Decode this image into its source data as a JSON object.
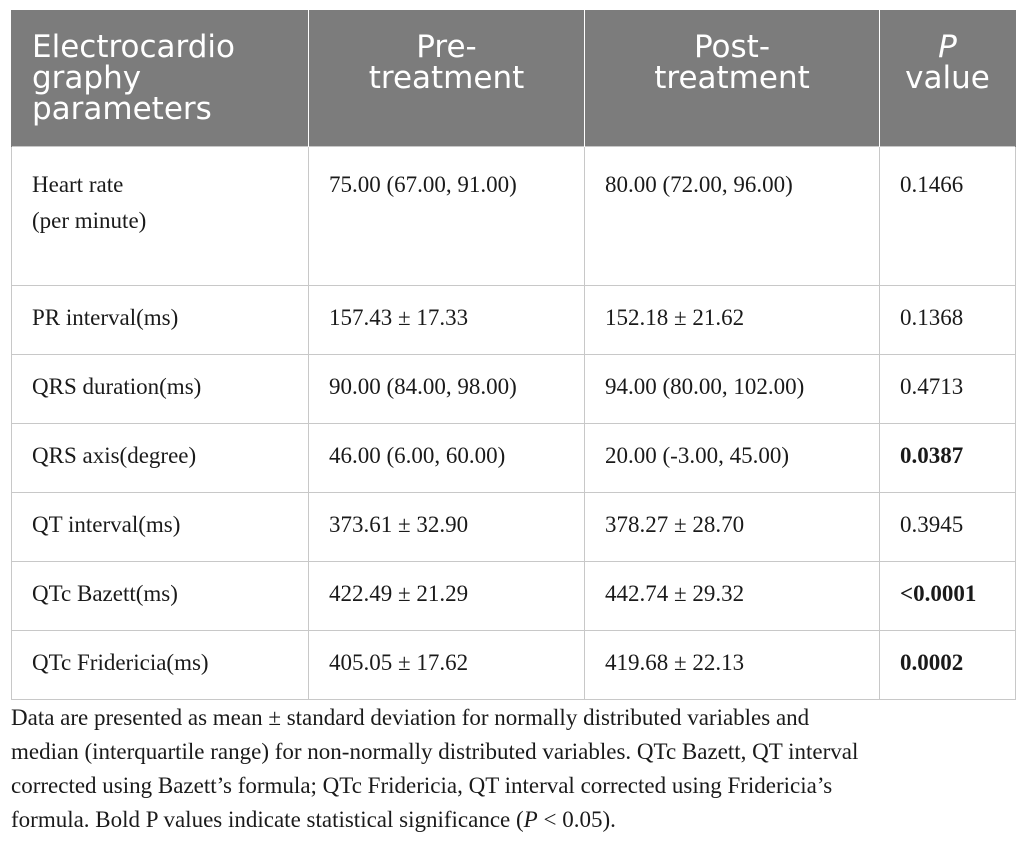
{
  "table": {
    "headers": {
      "parameters": [
        "Electrocardio",
        "graphy",
        "parameters"
      ],
      "pre": [
        "Pre-",
        "treatment"
      ],
      "post": [
        "Post-",
        "treatment"
      ],
      "p_value": {
        "p": "P",
        "value": "value"
      }
    },
    "rows": [
      {
        "parameter": [
          "Heart rate",
          "(per minute)"
        ],
        "pre": "75.00 (67.00, 91.00)",
        "post": "80.00 (72.00, 96.00)",
        "p": "0.1466",
        "significant": false
      },
      {
        "parameter": [
          "PR interval(ms)"
        ],
        "pre": "157.43 ± 17.33",
        "post": "152.18 ± 21.62",
        "p": "0.1368",
        "significant": false
      },
      {
        "parameter": [
          "QRS duration(ms)"
        ],
        "pre": "90.00 (84.00, 98.00)",
        "post": "94.00 (80.00, 102.00)",
        "p": "0.4713",
        "significant": false
      },
      {
        "parameter": [
          "QRS axis(degree)"
        ],
        "pre": "46.00 (6.00, 60.00)",
        "post": "20.00 (-3.00, 45.00)",
        "p": "0.0387",
        "significant": true
      },
      {
        "parameter": [
          "QT interval(ms)"
        ],
        "pre": "373.61 ± 32.90",
        "post": "378.27 ± 28.70",
        "p": "0.3945",
        "significant": false
      },
      {
        "parameter": [
          "QTc Bazett(ms)"
        ],
        "pre": "422.49 ± 21.29",
        "post": "442.74 ± 29.32",
        "p": "<0.0001",
        "significant": true
      },
      {
        "parameter": [
          "QTc Fridericia(ms)"
        ],
        "pre": "405.05 ± 17.62",
        "post": "419.68 ± 22.13",
        "p": "0.0002",
        "significant": true
      }
    ]
  },
  "footnote": {
    "line1": "Data are presented as mean ± standard deviation for normally distributed variables and",
    "line2": "median (interquartile range) for non-normally distributed variables. QTc Bazett, QT interval",
    "line3": "corrected using Bazett’s formula; QTc Fridericia, QT interval corrected using Fridericia’s",
    "line4_pre": "formula. Bold P values indicate statistical significance (",
    "line4_p": "P",
    "line4_post": " < 0.05)."
  }
}
